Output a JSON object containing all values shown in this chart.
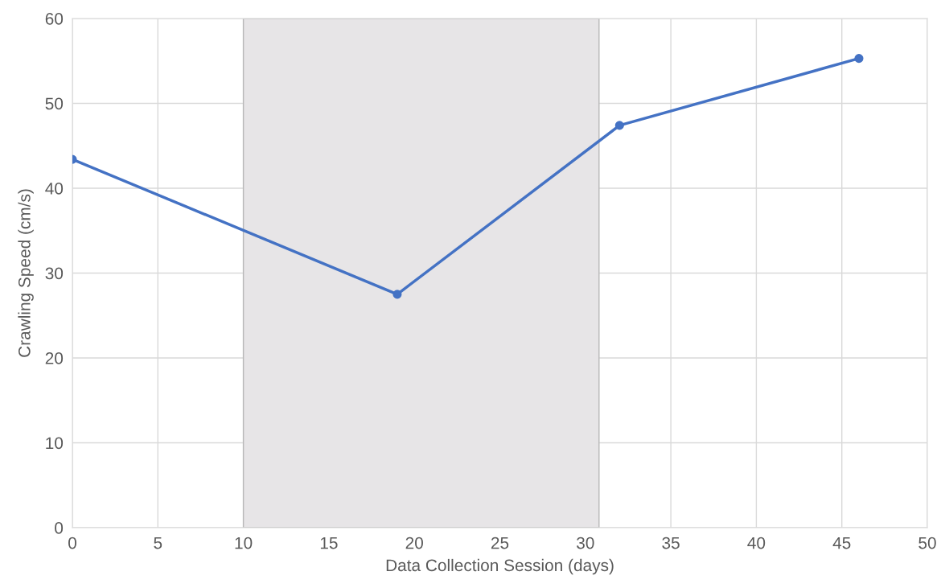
{
  "chart_data": {
    "type": "line",
    "xlabel": "Data Collection Session (days)",
    "ylabel": "Crawling Speed (cm/s)",
    "x": [
      0,
      19,
      32,
      46
    ],
    "series": [
      {
        "color": "#4472c4",
        "values": [
          43.4,
          27.5,
          47.4,
          55.3
        ]
      }
    ],
    "marker": "circle",
    "line_style": "solid",
    "grid": true,
    "xlim": [
      0,
      50
    ],
    "xticks": [
      0,
      5,
      10,
      15,
      20,
      25,
      30,
      35,
      40,
      45,
      50
    ],
    "ylim": [
      0,
      60
    ],
    "yticks": [
      0,
      10,
      20,
      30,
      40,
      50,
      60
    ],
    "bands": [
      {
        "axis": "x",
        "from": 10,
        "to": 30.8,
        "color": "#e7e5e7"
      }
    ]
  }
}
